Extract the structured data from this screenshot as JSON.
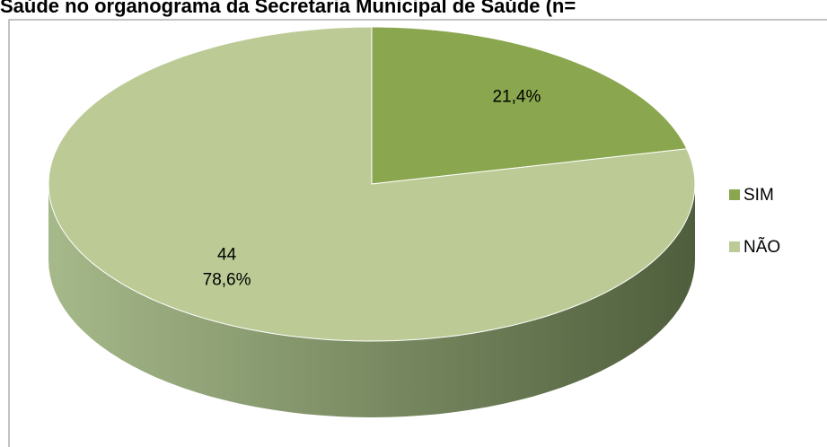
{
  "chart_data": {
    "type": "pie3d",
    "title": "Saúde no organograma da Secretaria Municipal de Saúde (n=",
    "categories": [
      "SIM",
      "NÃO"
    ],
    "values": [
      21.4,
      78.6
    ],
    "value_labels": [
      "21,4%",
      "78,6%"
    ],
    "counts": [
      null,
      44
    ],
    "colors": [
      "#8aa64e",
      "#bccb96"
    ],
    "legend": "right"
  }
}
